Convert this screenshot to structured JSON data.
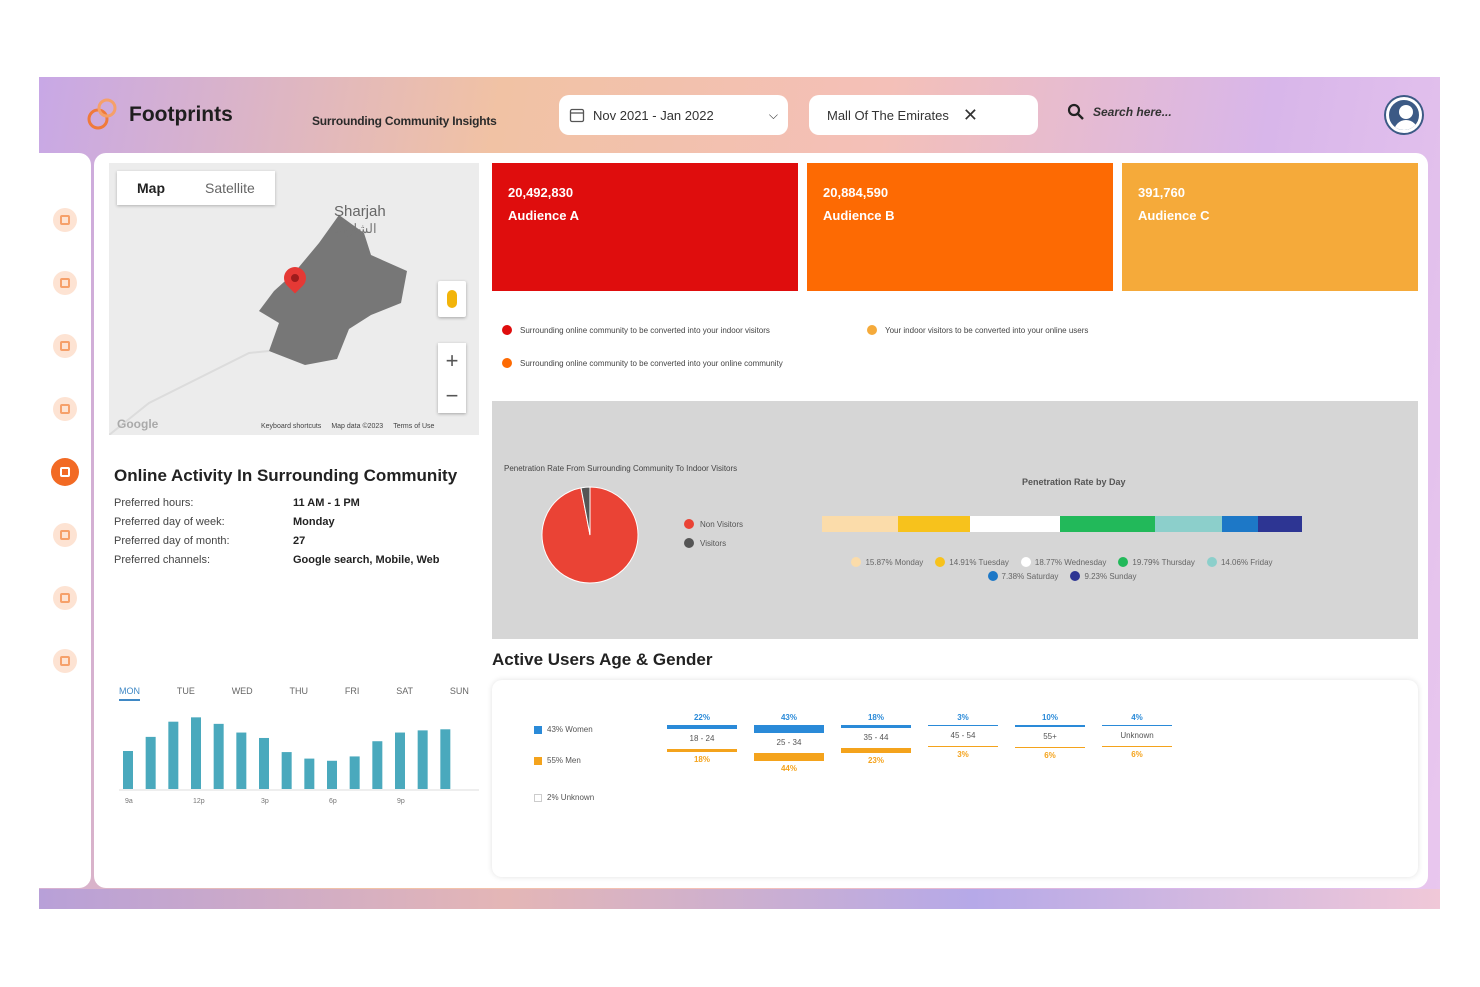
{
  "header": {
    "brand": "Footprints",
    "subtitle": "Surrounding Community Insights",
    "date_range": "Nov 2021 - Jan 2022",
    "venue": "Mall Of The Emirates",
    "search_placeholder": "Search here..."
  },
  "map": {
    "tab_map": "Map",
    "tab_satellite": "Satellite",
    "city": "Sharjah",
    "city_ar": "الشارقة",
    "google": "Google",
    "footer": [
      "Keyboard shortcuts",
      "Map data ©2023",
      "Terms of Use"
    ],
    "zoom_in": "+",
    "zoom_out": "−"
  },
  "online_activity": {
    "title": "Online Activity In Surrounding Community",
    "rows": [
      {
        "label": "Preferred hours:",
        "value": "11 AM - 1 PM"
      },
      {
        "label": "Preferred day of week:",
        "value": "Monday"
      },
      {
        "label": "Preferred day of month:",
        "value": "27"
      },
      {
        "label": "Preferred channels:",
        "value": "Google search, Mobile, Web"
      }
    ],
    "days": [
      "MON",
      "TUE",
      "WED",
      "THU",
      "FRI",
      "SAT",
      "SUN"
    ],
    "selected_day": "MON",
    "hour_ticks": [
      "9a",
      "12p",
      "3p",
      "6p",
      "9p"
    ],
    "hourly_values": [
      35,
      48,
      62,
      66,
      60,
      52,
      47,
      34,
      28,
      26,
      30,
      44,
      52,
      54,
      55
    ]
  },
  "audiences": [
    {
      "value": "20,492,830",
      "label": "Audience A",
      "color": "#df0d0d"
    },
    {
      "value": "20,884,590",
      "label": "Audience B",
      "color": "#fd6a03"
    },
    {
      "value": "391,760",
      "label": "Audience C",
      "color": "#f5aa3a"
    }
  ],
  "audience_legend": [
    {
      "text": "Surrounding online community to be converted into your indoor visitors",
      "color": "#df0d0d"
    },
    {
      "text": "Your indoor visitors to be converted into your online users",
      "color": "#f5aa3a"
    },
    {
      "text": "Surrounding online community to be converted into your online community",
      "color": "#fd6a03"
    }
  ],
  "penetration": {
    "pie_title": "Penetration Rate From Surrounding Community To Indoor Visitors",
    "pie_legend": [
      {
        "label": "Non Visitors",
        "color": "#ea4335"
      },
      {
        "label": "Visitors",
        "color": "#555555"
      }
    ],
    "bar_title": "Penetration Rate by Day",
    "day_legend": [
      {
        "label": "15.87% Monday",
        "color": "#fbdcaa"
      },
      {
        "label": "14.91% Tuesday",
        "color": "#f7c21c"
      },
      {
        "label": "18.77% Wednesday",
        "color": "#ffffff"
      },
      {
        "label": "19.79% Thursday",
        "color": "#22b95a"
      },
      {
        "label": "14.06% Friday",
        "color": "#8ccfcb"
      },
      {
        "label": "7.38% Saturday",
        "color": "#1d78c7"
      },
      {
        "label": "9.23% Sunday",
        "color": "#2d3593"
      }
    ]
  },
  "chart_data": [
    {
      "type": "bar",
      "title": "",
      "categories": [
        "9a",
        "",
        "",
        "12p",
        "",
        "",
        "3p",
        "",
        "",
        "6p",
        "",
        "",
        "9p",
        "",
        ""
      ],
      "values": [
        35,
        48,
        62,
        66,
        60,
        52,
        47,
        34,
        28,
        26,
        30,
        44,
        52,
        54,
        55
      ]
    },
    {
      "type": "pie",
      "title": "Penetration Rate From Surrounding Community To Indoor Visitors",
      "categories": [
        "Non Visitors",
        "Visitors"
      ],
      "values": [
        97,
        3
      ]
    },
    {
      "type": "bar",
      "title": "Penetration Rate by Day",
      "categories": [
        "Monday",
        "Tuesday",
        "Wednesday",
        "Thursday",
        "Friday",
        "Saturday",
        "Sunday"
      ],
      "values": [
        15.87,
        14.91,
        18.77,
        19.79,
        14.06,
        7.38,
        9.23
      ]
    },
    {
      "type": "bar",
      "title": "Active Users Age & Gender",
      "categories": [
        "18 - 24",
        "25 - 34",
        "35 - 44",
        "45 - 54",
        "55+",
        "Unknown"
      ],
      "series": [
        {
          "name": "43% Women",
          "values": [
            22,
            43,
            18,
            3,
            10,
            4
          ]
        },
        {
          "name": "55% Men",
          "values": [
            18,
            44,
            23,
            3,
            6,
            6
          ]
        }
      ]
    }
  ],
  "age_gender": {
    "title": "Active Users Age & Gender",
    "legend": [
      {
        "label": "43% Women",
        "color": "#2a8ad8"
      },
      {
        "label": "55% Men",
        "color": "#f4a31c"
      },
      {
        "label": "2% Unknown",
        "color": "#dddddd"
      }
    ],
    "groups": [
      {
        "label": "18 - 24",
        "women": "22%",
        "men": "18%",
        "w": 22,
        "m": 18
      },
      {
        "label": "25 - 34",
        "women": "43%",
        "men": "44%",
        "w": 43,
        "m": 44
      },
      {
        "label": "35 - 44",
        "women": "18%",
        "men": "23%",
        "w": 18,
        "m": 23
      },
      {
        "label": "45 - 54",
        "women": "3%",
        "men": "3%",
        "w": 3,
        "m": 3
      },
      {
        "label": "55+",
        "women": "10%",
        "men": "6%",
        "w": 10,
        "m": 6
      },
      {
        "label": "Unknown",
        "women": "4%",
        "men": "6%",
        "w": 4,
        "m": 6
      }
    ]
  },
  "colors": {
    "accent": "#f26a24",
    "teal_bar": "#4aa9bd"
  }
}
